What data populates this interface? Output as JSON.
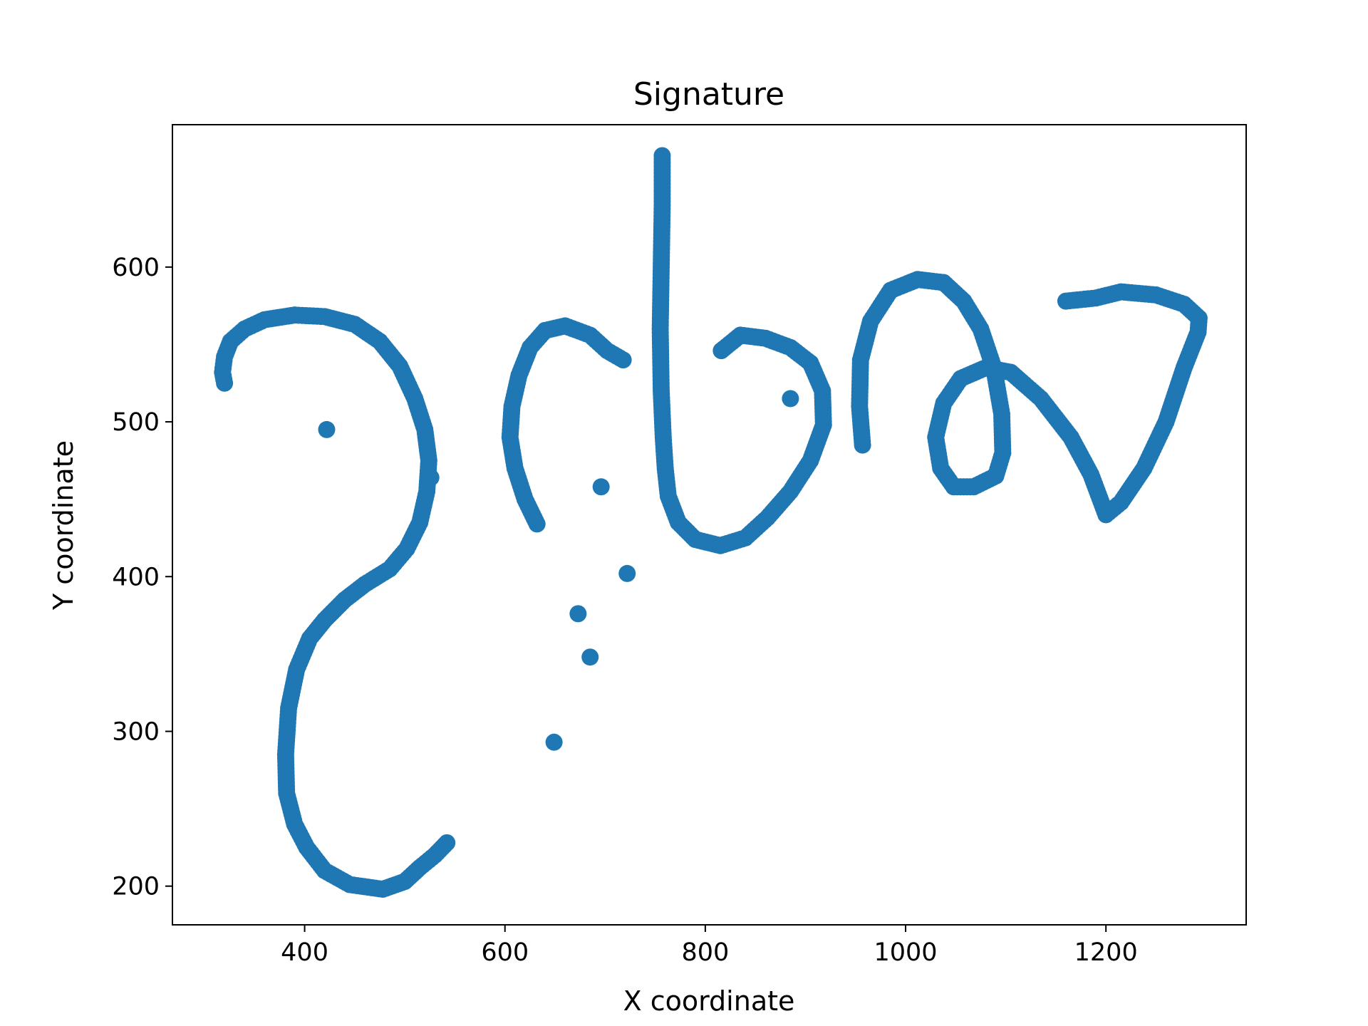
{
  "chart_data": {
    "type": "scatter",
    "title": "Signature",
    "xlabel": "X coordinate",
    "ylabel": "Y coordinate",
    "xlim": [
      268,
      1340
    ],
    "ylim": [
      175,
      692
    ],
    "xticks": [
      400,
      600,
      800,
      1000,
      1200
    ],
    "yticks": [
      200,
      300,
      400,
      500,
      600
    ],
    "grid": false,
    "color": "#1f77b4",
    "strokes": [
      [
        [
          320,
          525
        ],
        [
          318,
          532
        ],
        [
          320,
          542
        ],
        [
          326,
          552
        ],
        [
          340,
          560
        ],
        [
          360,
          566
        ],
        [
          390,
          569
        ],
        [
          420,
          568
        ],
        [
          450,
          563
        ],
        [
          475,
          552
        ],
        [
          495,
          536
        ],
        [
          510,
          515
        ],
        [
          520,
          495
        ],
        [
          524,
          475
        ],
        [
          522,
          455
        ],
        [
          515,
          435
        ],
        [
          502,
          418
        ],
        [
          485,
          405
        ],
        [
          460,
          395
        ],
        [
          440,
          385
        ],
        [
          420,
          372
        ],
        [
          405,
          360
        ],
        [
          392,
          340
        ],
        [
          384,
          315
        ],
        [
          381,
          285
        ],
        [
          382,
          260
        ],
        [
          390,
          240
        ],
        [
          402,
          225
        ],
        [
          420,
          210
        ],
        [
          445,
          201
        ],
        [
          478,
          198
        ],
        [
          500,
          203
        ],
        [
          515,
          212
        ],
        [
          530,
          220
        ],
        [
          542,
          228
        ]
      ],
      [
        [
          632,
          434
        ],
        [
          620,
          450
        ],
        [
          610,
          470
        ],
        [
          605,
          490
        ],
        [
          607,
          510
        ],
        [
          614,
          530
        ],
        [
          625,
          548
        ],
        [
          640,
          559
        ],
        [
          660,
          562
        ],
        [
          685,
          556
        ],
        [
          702,
          546
        ],
        [
          718,
          540
        ]
      ],
      [
        [
          757,
          672
        ],
        [
          757,
          640
        ],
        [
          756,
          600
        ],
        [
          755,
          560
        ],
        [
          756,
          520
        ],
        [
          758,
          490
        ],
        [
          760,
          470
        ],
        [
          763,
          452
        ],
        [
          773,
          435
        ],
        [
          790,
          424
        ],
        [
          815,
          420
        ],
        [
          840,
          425
        ],
        [
          862,
          438
        ],
        [
          885,
          455
        ],
        [
          905,
          475
        ],
        [
          918,
          498
        ],
        [
          917,
          520
        ],
        [
          905,
          538
        ],
        [
          885,
          548
        ],
        [
          860,
          554
        ],
        [
          835,
          556
        ],
        [
          816,
          546
        ]
      ],
      [
        [
          957,
          485
        ],
        [
          954,
          510
        ],
        [
          955,
          540
        ],
        [
          965,
          565
        ],
        [
          985,
          585
        ],
        [
          1012,
          592
        ],
        [
          1038,
          590
        ],
        [
          1058,
          578
        ],
        [
          1075,
          560
        ],
        [
          1088,
          535
        ],
        [
          1096,
          505
        ],
        [
          1097,
          480
        ],
        [
          1090,
          465
        ],
        [
          1068,
          458
        ],
        [
          1048,
          458
        ],
        [
          1035,
          470
        ],
        [
          1030,
          490
        ],
        [
          1038,
          512
        ],
        [
          1055,
          528
        ],
        [
          1080,
          535
        ],
        [
          1105,
          532
        ],
        [
          1135,
          515
        ],
        [
          1165,
          490
        ],
        [
          1185,
          466
        ],
        [
          1200,
          440
        ],
        [
          1215,
          448
        ],
        [
          1238,
          470
        ],
        [
          1260,
          500
        ],
        [
          1278,
          535
        ],
        [
          1292,
          558
        ],
        [
          1293,
          567
        ],
        [
          1278,
          576
        ],
        [
          1250,
          582
        ],
        [
          1215,
          584
        ],
        [
          1190,
          580
        ],
        [
          1160,
          578
        ]
      ],
      [
        [
          422,
          495
        ]
      ],
      [
        [
          526,
          464
        ]
      ],
      [
        [
          696,
          458
        ]
      ],
      [
        [
          722,
          402
        ]
      ],
      [
        [
          673,
          376
        ]
      ],
      [
        [
          685,
          348
        ]
      ],
      [
        [
          649,
          293
        ]
      ],
      [
        [
          885,
          515
        ]
      ]
    ]
  }
}
